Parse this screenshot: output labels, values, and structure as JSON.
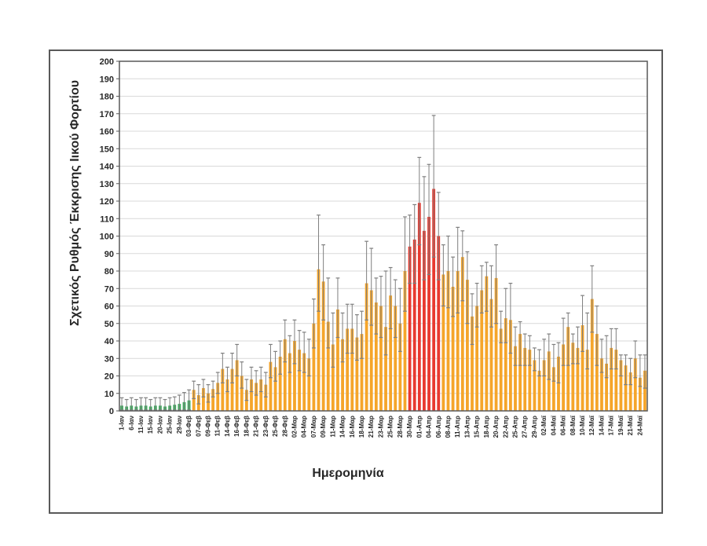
{
  "figure": {
    "y_axis_title": "Σχετικός Ρυθμός Έκκρισης Ιικού Φορτίου",
    "x_axis_title": "Ημερομηνία"
  },
  "chart_data": {
    "type": "bar",
    "title": "",
    "xlabel": "Ημερομηνία",
    "ylabel": "Σχετικός Ρυθμός Έκκρισης Ιικού Φορτίου",
    "ylim": [
      0,
      200
    ],
    "ytick_step": 10,
    "grid": true,
    "legend": "none",
    "bars_per_label": 2,
    "tick_labels": [
      "1-Ιαν",
      "6-Ιαν",
      "11-Ιαν",
      "15-Ιαν",
      "20-Ιαν",
      "25-Ιαν",
      "29-Ιαν",
      "03-Φεβ",
      "07-Φεβ",
      "09-Φεβ",
      "11-Φεβ",
      "14-Φεβ",
      "16-Φεβ",
      "18-Φεβ",
      "21-Φεβ",
      "23-Φεβ",
      "25-Φεβ",
      "28-Φεβ",
      "02-Μαρ",
      "04-Μαρ",
      "07-Μαρ",
      "09-Μαρ",
      "11-Μαρ",
      "14-Μαρ",
      "16-Μαρ",
      "18-Μαρ",
      "21-Μαρ",
      "23-Μαρ",
      "25-Μαρ",
      "28-Μαρ",
      "30-Μαρ",
      "01-Απρ",
      "04-Απρ",
      "06-Απρ",
      "08-Απρ",
      "11-Απρ",
      "13-Απρ",
      "15-Απρ",
      "18-Απρ",
      "20-Απρ",
      "22-Απρ",
      "25-Απρ",
      "27-Απρ",
      "29-Απρ",
      "02-Μαϊ",
      "04-Μαϊ",
      "06-Μαϊ",
      "08-Μαϊ",
      "10-Μαϊ",
      "12-Μαϊ",
      "14-Μαϊ",
      "17-Μαϊ",
      "19-Μαϊ",
      "21-Μαϊ",
      "24-Μαϊ"
    ],
    "values": [
      3,
      2.5,
      3,
      2.5,
      3,
      3,
      2.5,
      3,
      3,
      2.5,
      3,
      3.5,
      4,
      5,
      6,
      12,
      9,
      13,
      10,
      12.5,
      16,
      24,
      18,
      24,
      29,
      20,
      12,
      18,
      16,
      18,
      15,
      28,
      25,
      31,
      41,
      33,
      40,
      35,
      33,
      30,
      50,
      81,
      74,
      51,
      38,
      58,
      41,
      47,
      47,
      42,
      44,
      73,
      69,
      62,
      60,
      48,
      66,
      60,
      50,
      80,
      94,
      98,
      119,
      103,
      111,
      127,
      100,
      78,
      80,
      71,
      80,
      88,
      75,
      54,
      60,
      69,
      77,
      64,
      76,
      47,
      53,
      52,
      37,
      44,
      36,
      35,
      29,
      23,
      29,
      34,
      25,
      31,
      38,
      48,
      39,
      36,
      49,
      35,
      64,
      44,
      30,
      27,
      36,
      35,
      29,
      26,
      22,
      30,
      19,
      23
    ],
    "err_high": [
      7.5,
      6.5,
      7.5,
      6.5,
      7.5,
      7.5,
      6.5,
      7.5,
      7.5,
      6.5,
      7.5,
      8,
      9,
      10.5,
      12,
      17,
      15,
      18,
      15,
      17,
      22,
      33,
      25,
      33,
      38,
      28,
      18,
      25,
      23,
      25,
      22,
      38,
      34,
      40,
      52,
      43,
      52,
      46,
      45,
      41,
      64,
      112,
      95,
      76,
      56,
      76,
      56,
      61,
      61,
      55,
      57,
      97,
      93,
      76,
      77,
      80,
      82,
      75,
      70,
      111,
      112,
      118,
      145,
      134,
      141,
      169,
      125,
      95,
      100,
      88,
      105,
      103,
      91,
      67,
      73,
      83,
      85,
      83,
      95,
      57,
      70,
      73,
      48,
      51,
      44,
      43,
      36,
      35,
      41,
      44,
      38,
      39,
      53,
      56,
      44,
      48,
      66,
      56,
      83,
      60,
      41,
      43,
      47,
      47,
      32,
      32,
      30,
      40,
      32,
      32
    ],
    "err_low": [
      0.5,
      0.5,
      0.5,
      0.5,
      0.5,
      0.5,
      0.5,
      0.5,
      0.5,
      0.5,
      0.5,
      0.5,
      0.5,
      0.5,
      0.5,
      7,
      4,
      8,
      5,
      8,
      10,
      16,
      11,
      16,
      20,
      13,
      6,
      11,
      9,
      11,
      8,
      19,
      17,
      21,
      28,
      22,
      27,
      23,
      22,
      20,
      36,
      57,
      52,
      36,
      25,
      42,
      28,
      33,
      33,
      29,
      30,
      52,
      49,
      44,
      42,
      32,
      47,
      42,
      34,
      57,
      73,
      73,
      95,
      75,
      78,
      88,
      75,
      60,
      59,
      54,
      56,
      63,
      50,
      38,
      48,
      56,
      57,
      48,
      50,
      39,
      39,
      33,
      26,
      26,
      26,
      26,
      23,
      20,
      20,
      18,
      17,
      16,
      26,
      26,
      27,
      27,
      34,
      24,
      45,
      26,
      22,
      19,
      24,
      24,
      20,
      15,
      15,
      19,
      14,
      13
    ],
    "segments": [
      {
        "color_name": "green",
        "from": 0,
        "to": 14
      },
      {
        "color_name": "orange",
        "from": 15,
        "to": 59
      },
      {
        "color_name": "red",
        "from": 60,
        "to": 66
      },
      {
        "color_name": "orange",
        "from": 67,
        "to": 109
      }
    ],
    "colors": {
      "green": "#3bae5c",
      "orange": "#f5a52a",
      "red": "#e8392f",
      "error_bar": "#7f7f7f",
      "gridline": "#d9d9d9",
      "plot_border": "#595959",
      "figure_border": "#595959"
    }
  }
}
